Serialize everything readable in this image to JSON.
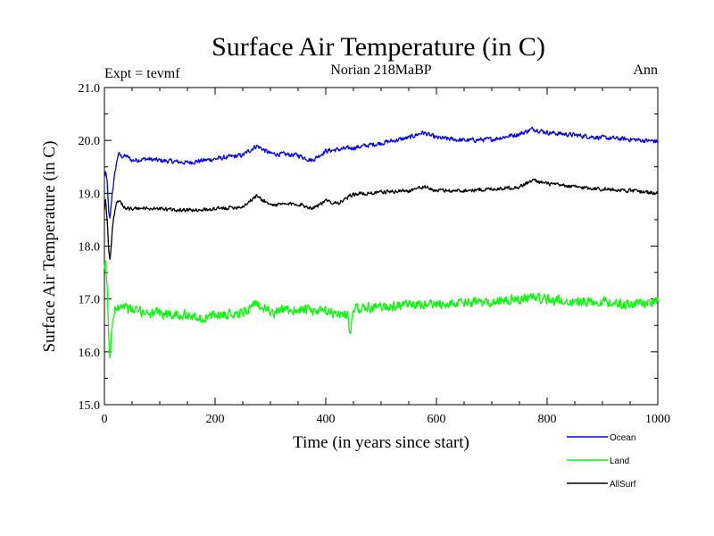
{
  "chart_data": {
    "type": "line",
    "title": "Surface Air Temperature (in C)",
    "subtitle_left": "Expt = tevmf",
    "subtitle_center": "Norian 218MaBP",
    "subtitle_right": "Ann",
    "xlabel": "Time (in years since start)",
    "ylabel": "Surface Air Temperature (in C)",
    "xlim": [
      0,
      1000
    ],
    "ylim": [
      15.0,
      21.0
    ],
    "xticks": [
      0,
      200,
      400,
      600,
      800,
      1000
    ],
    "xtick_labels": [
      "0",
      "200",
      "400",
      "600",
      "800",
      "1000"
    ],
    "yticks": [
      15.0,
      16.0,
      17.0,
      18.0,
      19.0,
      20.0,
      21.0
    ],
    "ytick_labels": [
      "15.0",
      "16.0",
      "17.0",
      "18.0",
      "19.0",
      "20.0",
      "21.0"
    ],
    "grid": false,
    "legend_position": "bottom-right, below plot",
    "series": [
      {
        "name": "Ocean",
        "color": "#0000ff",
        "x": [
          0,
          2,
          5,
          8,
          10,
          14,
          20,
          25,
          30,
          40,
          50,
          75,
          100,
          150,
          200,
          250,
          275,
          300,
          350,
          375,
          400,
          450,
          500,
          550,
          575,
          600,
          650,
          700,
          750,
          775,
          800,
          850,
          900,
          950,
          1000
        ],
        "y": [
          19.3,
          19.4,
          19.2,
          18.6,
          18.5,
          19.0,
          19.45,
          19.75,
          19.7,
          19.7,
          19.62,
          19.65,
          19.62,
          19.58,
          19.65,
          19.72,
          19.9,
          19.75,
          19.72,
          19.62,
          19.8,
          19.86,
          19.95,
          20.05,
          20.15,
          20.05,
          20.0,
          20.02,
          20.12,
          20.22,
          20.15,
          20.1,
          20.05,
          20.02,
          19.98
        ]
      },
      {
        "name": "Land",
        "color": "#00ff00",
        "x": [
          0,
          2,
          5,
          8,
          10,
          12,
          15,
          20,
          30,
          40,
          50,
          75,
          100,
          150,
          175,
          200,
          250,
          275,
          300,
          350,
          400,
          440,
          445,
          450,
          500,
          550,
          600,
          650,
          700,
          750,
          775,
          800,
          850,
          900,
          950,
          1000
        ],
        "y": [
          17.5,
          17.7,
          17.2,
          16.2,
          15.95,
          16.2,
          16.6,
          16.85,
          16.9,
          16.85,
          16.78,
          16.75,
          16.72,
          16.7,
          16.62,
          16.7,
          16.75,
          16.9,
          16.75,
          16.8,
          16.75,
          16.7,
          16.3,
          16.82,
          16.85,
          16.88,
          16.9,
          16.92,
          16.95,
          17.0,
          17.05,
          16.98,
          16.95,
          16.95,
          16.9,
          16.95
        ]
      },
      {
        "name": "AllSurf",
        "color": "#000000",
        "x": [
          0,
          2,
          5,
          8,
          10,
          12,
          15,
          20,
          25,
          30,
          40,
          50,
          75,
          100,
          150,
          200,
          250,
          275,
          300,
          350,
          375,
          400,
          425,
          450,
          500,
          550,
          575,
          600,
          650,
          700,
          750,
          775,
          800,
          850,
          900,
          950,
          1000
        ],
        "y": [
          18.7,
          18.9,
          18.5,
          17.9,
          17.75,
          17.95,
          18.4,
          18.75,
          18.85,
          18.8,
          18.72,
          18.7,
          18.72,
          18.7,
          18.68,
          18.7,
          18.75,
          18.95,
          18.78,
          18.8,
          18.72,
          18.85,
          18.82,
          18.98,
          19.02,
          19.05,
          19.12,
          19.05,
          19.05,
          19.08,
          19.12,
          19.25,
          19.18,
          19.12,
          19.08,
          19.05,
          19.0
        ]
      }
    ]
  }
}
